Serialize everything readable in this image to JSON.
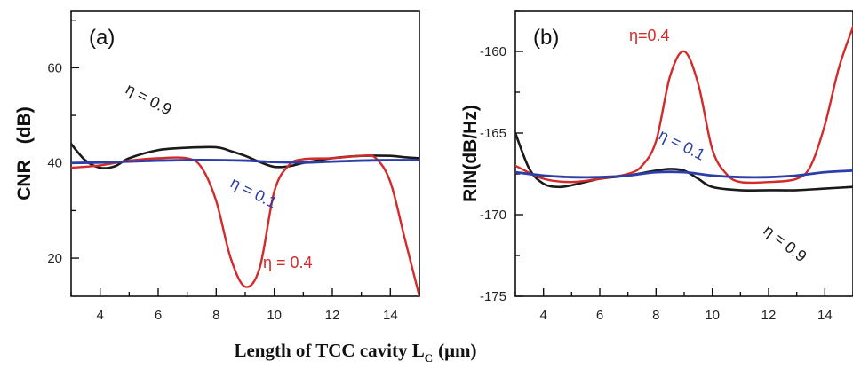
{
  "xlabel": "Length of TCC cavity L_C (μm)",
  "xlabel_main": "Length of TCC cavity L",
  "xlabel_sub": "C",
  "xlabel_unit": "(μm)",
  "colors": {
    "eta09": "#1a1a1a",
    "eta04": "#d42a2a",
    "eta01": "#2c3ea8",
    "axis": "#111111"
  },
  "chart_data": [
    {
      "type": "line",
      "panel": "(a)",
      "ylabel": "CNR (dB)",
      "ylabel_main": "CNR",
      "ylabel_tail": "(dB)",
      "xlim": [
        3,
        15
      ],
      "ylim": [
        12,
        72
      ],
      "xticks": [
        4,
        6,
        8,
        10,
        12,
        14
      ],
      "yticks": [
        20,
        40,
        60
      ],
      "grid": false,
      "annotations": [
        {
          "text": "η = 0.9",
          "series": "eta09"
        },
        {
          "text": "η = 0.1",
          "series": "eta01"
        },
        {
          "text": "η = 0.4",
          "series": "eta04"
        }
      ],
      "series": [
        {
          "key": "eta09",
          "x": [
            3,
            3.5,
            4,
            4.5,
            5,
            6,
            7,
            8,
            8.5,
            9,
            9.5,
            10,
            10.5,
            11,
            12,
            13,
            14,
            14.5,
            15
          ],
          "y": [
            44,
            40.5,
            39,
            39.3,
            41,
            42.7,
            43.2,
            43.3,
            42.5,
            41.5,
            40.2,
            39.2,
            39.3,
            40,
            41,
            41.5,
            41.5,
            41.2,
            41
          ]
        },
        {
          "key": "eta04",
          "x": [
            3,
            4,
            5,
            6,
            7,
            7.5,
            8,
            8.5,
            9,
            9.5,
            10,
            10.5,
            11,
            12,
            13,
            13.5,
            14,
            14.5,
            15
          ],
          "y": [
            39,
            39.5,
            40.5,
            41,
            41,
            39,
            32,
            20,
            14,
            18,
            34,
            39.5,
            40.8,
            41,
            41.5,
            41,
            36,
            24,
            12
          ]
        },
        {
          "key": "eta01",
          "x": [
            3,
            4,
            5,
            6,
            7,
            8,
            9,
            10,
            11,
            12,
            13,
            14,
            15
          ],
          "y": [
            40,
            40.1,
            40.3,
            40.5,
            40.6,
            40.6,
            40.5,
            40.2,
            40.1,
            40.3,
            40.5,
            40.6,
            40.6
          ]
        }
      ]
    },
    {
      "type": "line",
      "panel": "(b)",
      "ylabel": "RIN(dB/Hz)",
      "xlim": [
        3,
        15
      ],
      "ylim": [
        -175,
        -157.5
      ],
      "xticks": [
        4,
        6,
        8,
        10,
        12,
        14
      ],
      "yticks": [
        -160,
        -165,
        -170,
        -175
      ],
      "grid": false,
      "annotations": [
        {
          "text": "η=0.4",
          "series": "eta04"
        },
        {
          "text": "η = 0.1",
          "series": "eta01"
        },
        {
          "text": "η = 0.9",
          "series": "eta09"
        }
      ],
      "series": [
        {
          "key": "eta09",
          "x": [
            3,
            3.5,
            4,
            4.5,
            5,
            6,
            7,
            8,
            8.5,
            9,
            9.5,
            10,
            11,
            12,
            13,
            14,
            15
          ],
          "y": [
            -165,
            -167.2,
            -168.1,
            -168.3,
            -168.2,
            -167.8,
            -167.6,
            -167.3,
            -167.2,
            -167.3,
            -167.8,
            -168.3,
            -168.5,
            -168.5,
            -168.5,
            -168.4,
            -168.3
          ]
        },
        {
          "key": "eta04",
          "x": [
            3,
            4,
            5,
            6,
            7,
            7.5,
            8,
            8.5,
            9,
            9.5,
            10,
            10.5,
            11,
            12,
            13,
            13.5,
            14,
            14.5,
            15
          ],
          "y": [
            -167,
            -167.8,
            -168,
            -167.8,
            -167.5,
            -167,
            -165.5,
            -161.5,
            -160,
            -162,
            -166,
            -167.5,
            -168,
            -168,
            -167.8,
            -167,
            -164.5,
            -161,
            -158.5
          ]
        },
        {
          "key": "eta01",
          "x": [
            3,
            4,
            5,
            6,
            7,
            8,
            9,
            10,
            11,
            12,
            13,
            14,
            15
          ],
          "y": [
            -167.4,
            -167.6,
            -167.7,
            -167.7,
            -167.6,
            -167.4,
            -167.4,
            -167.6,
            -167.7,
            -167.7,
            -167.6,
            -167.4,
            -167.3
          ]
        }
      ]
    }
  ]
}
